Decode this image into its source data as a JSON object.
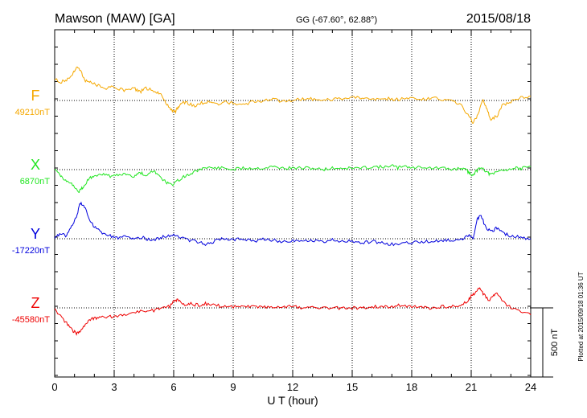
{
  "header": {
    "station": "Mawson (MAW)  [GA]",
    "coords": "GG (-67.60°,  62.88°)",
    "date": "2015/08/18"
  },
  "plotted_note": "Plotted at 2015/09/18 01:36 UT",
  "scale_bar_label": "500 nT",
  "colors": {
    "F": "#f5a800",
    "X": "#22e622",
    "Y": "#0000dd",
    "Z": "#ee0000",
    "axis": "#000000",
    "grid": "#000000"
  },
  "chart_data": {
    "type": "line",
    "title": "Mawson (MAW)  [GA]",
    "xlabel": "U T (hour)",
    "xlim": [
      0,
      24
    ],
    "xticks": [
      0,
      3,
      6,
      9,
      12,
      15,
      18,
      21,
      24
    ],
    "units_per_panel_nT": 1000,
    "series": [
      {
        "name": "F",
        "baseline_label": "49210nT",
        "baseline_nT": 49210,
        "panel": 0,
        "points": [
          [
            0,
            49370
          ],
          [
            0.3,
            49340
          ],
          [
            0.6,
            49360
          ],
          [
            0.9,
            49400
          ],
          [
            1.1,
            49450
          ],
          [
            1.3,
            49430
          ],
          [
            1.5,
            49360
          ],
          [
            1.8,
            49340
          ],
          [
            2.2,
            49320
          ],
          [
            2.6,
            49300
          ],
          [
            3.0,
            49310
          ],
          [
            3.5,
            49280
          ],
          [
            4.0,
            49300
          ],
          [
            4.3,
            49270
          ],
          [
            4.6,
            49300
          ],
          [
            5.0,
            49280
          ],
          [
            5.3,
            49260
          ],
          [
            5.6,
            49190
          ],
          [
            5.9,
            49140
          ],
          [
            6.1,
            49130
          ],
          [
            6.3,
            49180
          ],
          [
            6.6,
            49200
          ],
          [
            7.0,
            49170
          ],
          [
            7.4,
            49190
          ],
          [
            7.8,
            49200
          ],
          [
            8.2,
            49180
          ],
          [
            8.6,
            49200
          ],
          [
            9.0,
            49190
          ],
          [
            9.5,
            49180
          ],
          [
            10.0,
            49200
          ],
          [
            10.5,
            49210
          ],
          [
            11.0,
            49220
          ],
          [
            11.5,
            49200
          ],
          [
            12.0,
            49210
          ],
          [
            12.5,
            49220
          ],
          [
            13.0,
            49220
          ],
          [
            13.5,
            49210
          ],
          [
            14.0,
            49220
          ],
          [
            14.5,
            49220
          ],
          [
            15.0,
            49230
          ],
          [
            15.5,
            49230
          ],
          [
            16.0,
            49220
          ],
          [
            16.5,
            49230
          ],
          [
            17.0,
            49220
          ],
          [
            17.5,
            49220
          ],
          [
            18.0,
            49230
          ],
          [
            18.5,
            49220
          ],
          [
            19.0,
            49230
          ],
          [
            19.5,
            49220
          ],
          [
            20.0,
            49210
          ],
          [
            20.5,
            49170
          ],
          [
            20.9,
            49090
          ],
          [
            21.1,
            49050
          ],
          [
            21.3,
            49100
          ],
          [
            21.6,
            49220
          ],
          [
            21.8,
            49140
          ],
          [
            22.0,
            49070
          ],
          [
            22.3,
            49100
          ],
          [
            22.6,
            49180
          ],
          [
            23.0,
            49200
          ],
          [
            23.5,
            49230
          ],
          [
            24.0,
            49240
          ]
        ]
      },
      {
        "name": "X",
        "baseline_label": "6870nT",
        "baseline_nT": 6870,
        "panel": 1,
        "points": [
          [
            0,
            6870
          ],
          [
            0.3,
            6820
          ],
          [
            0.6,
            6790
          ],
          [
            0.9,
            6760
          ],
          [
            1.2,
            6710
          ],
          [
            1.4,
            6740
          ],
          [
            1.7,
            6800
          ],
          [
            2.0,
            6830
          ],
          [
            2.4,
            6840
          ],
          [
            2.8,
            6820
          ],
          [
            3.2,
            6830
          ],
          [
            3.6,
            6840
          ],
          [
            4.0,
            6820
          ],
          [
            4.3,
            6850
          ],
          [
            4.6,
            6830
          ],
          [
            5.0,
            6860
          ],
          [
            5.3,
            6820
          ],
          [
            5.6,
            6780
          ],
          [
            5.9,
            6760
          ],
          [
            6.2,
            6790
          ],
          [
            6.5,
            6820
          ],
          [
            6.8,
            6840
          ],
          [
            7.2,
            6860
          ],
          [
            7.6,
            6890
          ],
          [
            8.0,
            6880
          ],
          [
            8.5,
            6880
          ],
          [
            9.0,
            6870
          ],
          [
            9.5,
            6880
          ],
          [
            10.0,
            6880
          ],
          [
            10.5,
            6880
          ],
          [
            11.0,
            6890
          ],
          [
            11.5,
            6880
          ],
          [
            12.0,
            6880
          ],
          [
            12.5,
            6880
          ],
          [
            13.0,
            6880
          ],
          [
            13.5,
            6870
          ],
          [
            14.0,
            6880
          ],
          [
            14.5,
            6880
          ],
          [
            15.0,
            6880
          ],
          [
            15.5,
            6880
          ],
          [
            16.0,
            6890
          ],
          [
            16.5,
            6890
          ],
          [
            17.0,
            6900
          ],
          [
            17.3,
            6880
          ],
          [
            17.6,
            6900
          ],
          [
            18.0,
            6880
          ],
          [
            18.5,
            6890
          ],
          [
            19.0,
            6880
          ],
          [
            19.5,
            6880
          ],
          [
            20.0,
            6870
          ],
          [
            20.5,
            6880
          ],
          [
            20.8,
            6860
          ],
          [
            21.0,
            6830
          ],
          [
            21.2,
            6850
          ],
          [
            21.5,
            6890
          ],
          [
            21.8,
            6850
          ],
          [
            22.0,
            6830
          ],
          [
            22.4,
            6860
          ],
          [
            22.8,
            6870
          ],
          [
            23.2,
            6880
          ],
          [
            23.6,
            6880
          ],
          [
            24.0,
            6890
          ]
        ]
      },
      {
        "name": "Y",
        "baseline_label": "-17220nT",
        "baseline_nT": -17220,
        "panel": 2,
        "points": [
          [
            0,
            -17220
          ],
          [
            0.3,
            -17180
          ],
          [
            0.6,
            -17200
          ],
          [
            0.9,
            -17120
          ],
          [
            1.1,
            -17060
          ],
          [
            1.3,
            -16960
          ],
          [
            1.5,
            -16990
          ],
          [
            1.8,
            -17100
          ],
          [
            2.1,
            -17150
          ],
          [
            2.4,
            -17180
          ],
          [
            2.8,
            -17200
          ],
          [
            3.2,
            -17220
          ],
          [
            3.6,
            -17200
          ],
          [
            4.0,
            -17220
          ],
          [
            4.4,
            -17210
          ],
          [
            4.8,
            -17230
          ],
          [
            5.2,
            -17220
          ],
          [
            5.6,
            -17200
          ],
          [
            6.0,
            -17190
          ],
          [
            6.4,
            -17210
          ],
          [
            6.8,
            -17230
          ],
          [
            7.2,
            -17240
          ],
          [
            7.6,
            -17260
          ],
          [
            8.0,
            -17240
          ],
          [
            8.5,
            -17220
          ],
          [
            9.0,
            -17230
          ],
          [
            9.5,
            -17220
          ],
          [
            10.0,
            -17240
          ],
          [
            10.5,
            -17220
          ],
          [
            11.0,
            -17230
          ],
          [
            11.5,
            -17240
          ],
          [
            12.0,
            -17230
          ],
          [
            12.5,
            -17240
          ],
          [
            13.0,
            -17230
          ],
          [
            13.5,
            -17240
          ],
          [
            14.0,
            -17230
          ],
          [
            14.5,
            -17240
          ],
          [
            15.0,
            -17240
          ],
          [
            15.5,
            -17250
          ],
          [
            16.0,
            -17240
          ],
          [
            16.5,
            -17250
          ],
          [
            17.0,
            -17260
          ],
          [
            17.5,
            -17250
          ],
          [
            18.0,
            -17250
          ],
          [
            18.5,
            -17240
          ],
          [
            19.0,
            -17240
          ],
          [
            19.5,
            -17230
          ],
          [
            20.0,
            -17230
          ],
          [
            20.5,
            -17220
          ],
          [
            20.9,
            -17200
          ],
          [
            21.1,
            -17210
          ],
          [
            21.3,
            -17080
          ],
          [
            21.5,
            -17050
          ],
          [
            21.7,
            -17130
          ],
          [
            22.0,
            -17170
          ],
          [
            22.3,
            -17140
          ],
          [
            22.6,
            -17180
          ],
          [
            23.0,
            -17200
          ],
          [
            23.5,
            -17210
          ],
          [
            24.0,
            -17220
          ]
        ]
      },
      {
        "name": "Z",
        "baseline_label": "-45580nT",
        "baseline_nT": -45580,
        "panel": 3,
        "points": [
          [
            0,
            -45590
          ],
          [
            0.3,
            -45640
          ],
          [
            0.6,
            -45690
          ],
          [
            0.9,
            -45740
          ],
          [
            1.1,
            -45770
          ],
          [
            1.3,
            -45740
          ],
          [
            1.6,
            -45690
          ],
          [
            1.9,
            -45660
          ],
          [
            2.2,
            -45650
          ],
          [
            2.6,
            -45650
          ],
          [
            3.0,
            -45640
          ],
          [
            3.5,
            -45630
          ],
          [
            4.0,
            -45610
          ],
          [
            4.5,
            -45600
          ],
          [
            5.0,
            -45600
          ],
          [
            5.4,
            -45580
          ],
          [
            5.8,
            -45570
          ],
          [
            6.0,
            -45530
          ],
          [
            6.2,
            -45520
          ],
          [
            6.5,
            -45560
          ],
          [
            6.8,
            -45550
          ],
          [
            7.2,
            -45560
          ],
          [
            7.6,
            -45550
          ],
          [
            8.0,
            -45560
          ],
          [
            8.5,
            -45570
          ],
          [
            9.0,
            -45570
          ],
          [
            9.5,
            -45570
          ],
          [
            10.0,
            -45570
          ],
          [
            10.5,
            -45570
          ],
          [
            11.0,
            -45580
          ],
          [
            11.5,
            -45570
          ],
          [
            12.0,
            -45570
          ],
          [
            12.5,
            -45580
          ],
          [
            13.0,
            -45580
          ],
          [
            13.5,
            -45580
          ],
          [
            14.0,
            -45580
          ],
          [
            14.5,
            -45580
          ],
          [
            15.0,
            -45580
          ],
          [
            15.5,
            -45580
          ],
          [
            16.0,
            -45570
          ],
          [
            16.5,
            -45570
          ],
          [
            17.0,
            -45570
          ],
          [
            17.5,
            -45560
          ],
          [
            18.0,
            -45570
          ],
          [
            18.5,
            -45580
          ],
          [
            19.0,
            -45580
          ],
          [
            19.5,
            -45570
          ],
          [
            20.0,
            -45570
          ],
          [
            20.4,
            -45560
          ],
          [
            20.8,
            -45540
          ],
          [
            21.0,
            -45490
          ],
          [
            21.2,
            -45470
          ],
          [
            21.4,
            -45440
          ],
          [
            21.6,
            -45480
          ],
          [
            21.9,
            -45530
          ],
          [
            22.1,
            -45490
          ],
          [
            22.3,
            -45480
          ],
          [
            22.6,
            -45540
          ],
          [
            23.0,
            -45580
          ],
          [
            23.5,
            -45610
          ],
          [
            24.0,
            -45630
          ]
        ]
      }
    ]
  }
}
